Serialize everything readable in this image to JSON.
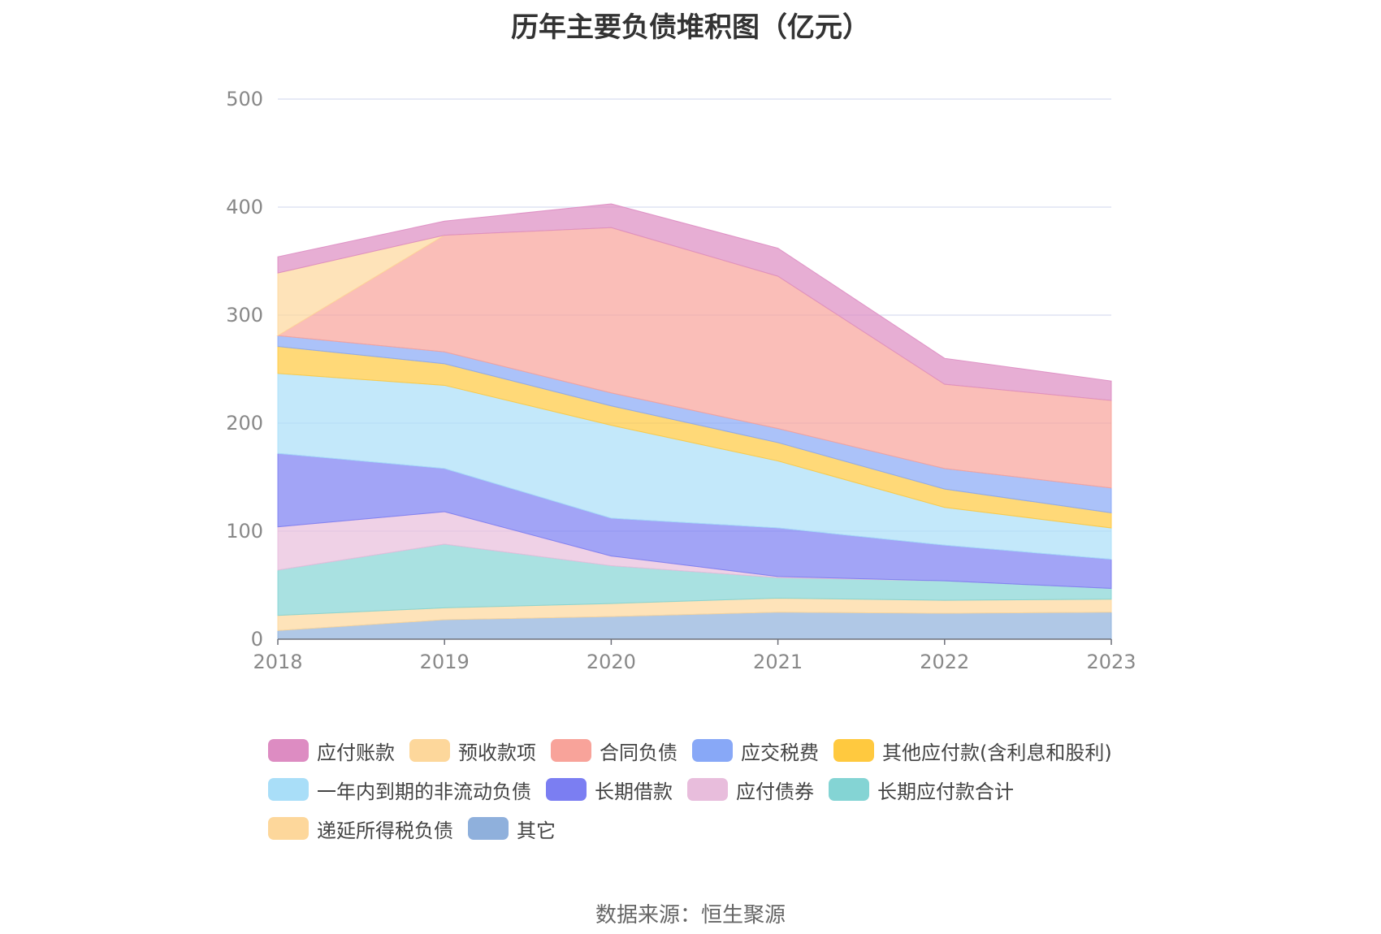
{
  "title": "历年主要负债堆积图（亿元）",
  "source": "数据来源：恒生聚源",
  "chart_data": {
    "type": "area",
    "stacked": true,
    "title": "历年主要负债堆积图（亿元）",
    "xlabel": "",
    "ylabel": "",
    "ylim": [
      0,
      500
    ],
    "yticks": [
      "0",
      "100",
      "200",
      "300",
      "400",
      "500"
    ],
    "categories": [
      "2018",
      "2019",
      "2020",
      "2021",
      "2022",
      "2023"
    ],
    "grid": true,
    "legend_position": "bottom",
    "series": [
      {
        "name": "其它",
        "color": "#8fb0dc",
        "values": [
          8,
          18,
          21,
          25,
          24,
          25
        ]
      },
      {
        "name": "递延所得税负债",
        "color": "#fdd79b",
        "values": [
          14,
          11,
          12,
          13,
          12,
          12
        ]
      },
      {
        "name": "长期应付款合计",
        "color": "#84d4d4",
        "values": [
          42,
          59,
          35,
          19,
          18,
          10
        ]
      },
      {
        "name": "应付债券",
        "color": "#e8bddc",
        "values": [
          40,
          30,
          9,
          1,
          0,
          0
        ]
      },
      {
        "name": "长期借款",
        "color": "#7b7ef2",
        "values": [
          68,
          40,
          35,
          45,
          33,
          27
        ]
      },
      {
        "name": "一年内到期的非流动负债",
        "color": "#a9def8",
        "values": [
          74,
          77,
          86,
          62,
          35,
          29
        ]
      },
      {
        "name": "其他应付款(含利息和股利)",
        "color": "#ffc93f",
        "values": [
          25,
          20,
          18,
          17,
          17,
          14
        ]
      },
      {
        "name": "应交税费",
        "color": "#88a8f7",
        "values": [
          10,
          11,
          12,
          13,
          19,
          23
        ]
      },
      {
        "name": "合同负债",
        "color": "#f8a39a",
        "values": [
          0,
          108,
          153,
          141,
          78,
          81
        ]
      },
      {
        "name": "预收款项",
        "color": "#fdd79b",
        "values": [
          58,
          0,
          0,
          0,
          0,
          0
        ]
      },
      {
        "name": "应付账款",
        "color": "#dd8cc2",
        "values": [
          15,
          13,
          22,
          26,
          24,
          18
        ]
      }
    ]
  },
  "legend_rows": [
    [
      "应付账款",
      "预收款项",
      "合同负债",
      "应交税费",
      "其他应付款(含利息和股利)"
    ],
    [
      "一年内到期的非流动负债",
      "长期借款",
      "应付债券",
      "长期应付款合计"
    ],
    [
      "递延所得税负债",
      "其它"
    ]
  ]
}
